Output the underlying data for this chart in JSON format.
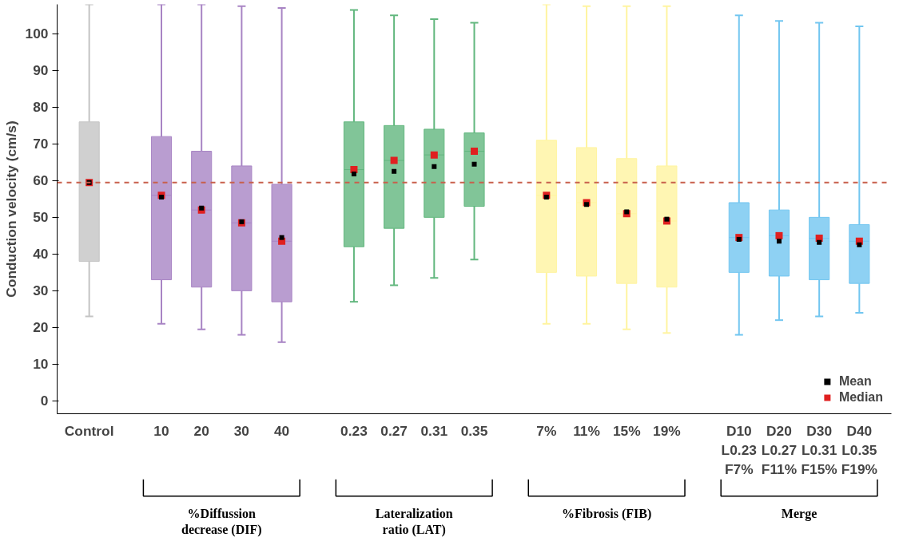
{
  "chart_data": {
    "type": "box",
    "ylabel": "Conduction velocity (cm/s)",
    "categories": [
      "Control",
      "10",
      "20",
      "30",
      "40",
      "0.23",
      "0.27",
      "0.31",
      "0.35",
      "7%",
      "11%",
      "15%",
      "19%",
      "D10\nL0.23\nF7%",
      "D20\nL0.27\nF11%",
      "D30\nL0.31\nF15%",
      "D40\nL0.35\nF19%"
    ],
    "ylim": [
      -3.5,
      108
    ],
    "yticks": [
      0,
      10,
      20,
      30,
      40,
      50,
      60,
      70,
      80,
      90,
      100
    ],
    "grid": false,
    "legend": "bottom right",
    "series": [
      {
        "colors": [
          "#c4c4c4",
          "#a884c4",
          "#a884c4",
          "#a884c4",
          "#a884c4",
          "#62b77e",
          "#62b77e",
          "#62b77e",
          "#62b77e",
          "#fff4a0",
          "#fff4a0",
          "#fff4a0",
          "#fff4a0",
          "#72c6f0",
          "#72c6f0",
          "#72c6f0",
          "#72c6f0"
        ],
        "boxes": [
          {
            "low": 23,
            "q1": 38,
            "median": 59.5,
            "q3": 76,
            "high": 108
          },
          {
            "low": 21,
            "q1": 33,
            "median": 56,
            "q3": 72,
            "high": 108
          },
          {
            "low": 19.5,
            "q1": 31,
            "median": 52,
            "q3": 68,
            "high": 108
          },
          {
            "low": 18,
            "q1": 30,
            "median": 48.5,
            "q3": 64,
            "high": 107.5
          },
          {
            "low": 16,
            "q1": 27,
            "median": 43.5,
            "q3": 59,
            "high": 107
          },
          {
            "low": 27,
            "q1": 42,
            "median": 63,
            "q3": 76,
            "high": 106.5
          },
          {
            "low": 31.5,
            "q1": 47,
            "median": 65.5,
            "q3": 75,
            "high": 105
          },
          {
            "low": 33.5,
            "q1": 50,
            "median": 67,
            "q3": 74,
            "high": 104
          },
          {
            "low": 38.5,
            "q1": 53,
            "median": 68,
            "q3": 73,
            "high": 103
          },
          {
            "low": 21,
            "q1": 35,
            "median": 56,
            "q3": 71,
            "high": 108
          },
          {
            "low": 21,
            "q1": 34,
            "median": 54,
            "q3": 69,
            "high": 107.5
          },
          {
            "low": 19.5,
            "q1": 32,
            "median": 51,
            "q3": 66,
            "high": 107.5
          },
          {
            "low": 18.5,
            "q1": 31,
            "median": 49,
            "q3": 64,
            "high": 107.5
          },
          {
            "low": 18,
            "q1": 35,
            "median": 44.5,
            "q3": 54,
            "high": 105
          },
          {
            "low": 22,
            "q1": 34,
            "median": 45,
            "q3": 52,
            "high": 103.5
          },
          {
            "low": 23,
            "q1": 33,
            "median": 44.3,
            "q3": 50,
            "high": 103
          },
          {
            "low": 24,
            "q1": 32,
            "median": 43.5,
            "q3": 48,
            "high": 102
          }
        ]
      },
      {
        "name": "Mean",
        "type": "scatter",
        "color": "#000000",
        "values": [
          59.5,
          55.5,
          52.5,
          48.8,
          44.5,
          61.8,
          62.5,
          63.8,
          64.5,
          55.5,
          53.5,
          51.5,
          49.5,
          44,
          43.5,
          43.2,
          42.5
        ]
      },
      {
        "name": "Median",
        "type": "scatter",
        "color": "#e02020",
        "values": [
          59.5,
          56,
          52,
          48.5,
          43.5,
          63,
          65.5,
          67,
          68,
          56,
          54,
          51,
          49,
          44.5,
          45,
          44.3,
          43.5
        ]
      }
    ],
    "ref_lines": [
      {
        "axis": "y",
        "value": 59.5,
        "color": "#c8604c",
        "line_style": "dashed"
      }
    ],
    "annotations": [
      "%Diffussion\ndecrease (DIF)",
      "Lateralization\nratio (LAT)",
      "%Fibrosis (FIB)",
      "Merge"
    ]
  }
}
